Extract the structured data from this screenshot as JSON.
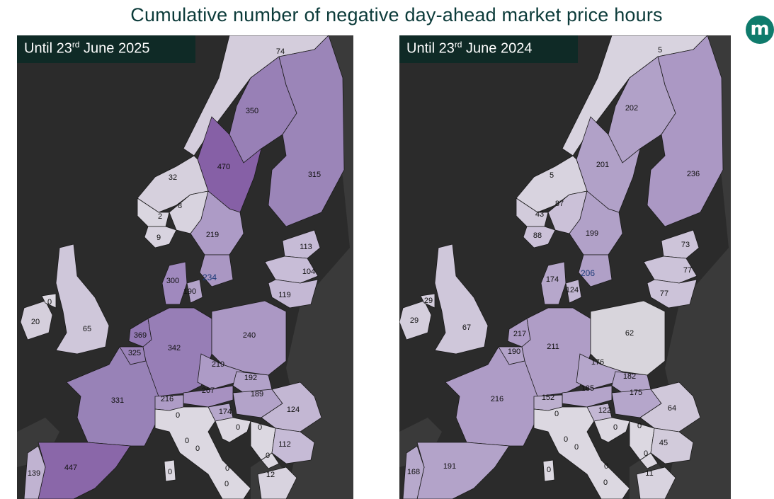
{
  "title": "Cumulative number of negative day-ahead market price hours",
  "logo_letter": "m",
  "colors": {
    "sea": "#2b2b2b",
    "land_other": "#3a3a3a",
    "border": "#1a1a1a",
    "caption_bg": "#0f2a26",
    "title": "#0c3b3a",
    "logo": "#0f7b6c"
  },
  "maps": [
    {
      "caption_prefix": "Until 23",
      "caption_sup": "rd",
      "caption_suffix": " June 2025",
      "regions": {
        "NO4": {
          "value": "74",
          "fill": "#d4cddc"
        },
        "SE1": {
          "value": "350",
          "fill": "#9880b6"
        },
        "FI": {
          "value": "315",
          "fill": "#9b85b8"
        },
        "SE2": {
          "value": "470",
          "fill": "#8660a6"
        },
        "NO3": {
          "value": "32",
          "fill": "#d6d0dd"
        },
        "NO1": {
          "value": "8",
          "fill": "#d8d3df"
        },
        "NO5": {
          "value": "2",
          "fill": "#dad6e0"
        },
        "NO2": {
          "value": "9",
          "fill": "#d8d3df"
        },
        "SE3": {
          "value": "219",
          "fill": "#ad9bc6"
        },
        "SE4": {
          "value": "234",
          "fill": "#aa97c3"
        },
        "DK1": {
          "value": "300",
          "fill": "#a089be"
        },
        "DK2": {
          "value": "190",
          "fill": "#b3a3c9"
        },
        "EE": {
          "value": "113",
          "fill": "#c6bbd6"
        },
        "LV": {
          "value": "104",
          "fill": "#c8bdd7"
        },
        "LT": {
          "value": "119",
          "fill": "#c4b8d4"
        },
        "IE": {
          "value": "20",
          "fill": "#d5cfdc"
        },
        "NI": {
          "value": "0",
          "fill": "#dcd8e1"
        },
        "GB": {
          "value": "65",
          "fill": "#cfc7da"
        },
        "NL": {
          "value": "369",
          "fill": "#9379b4"
        },
        "BE": {
          "value": "325",
          "fill": "#9a82b8"
        },
        "DE": {
          "value": "342",
          "fill": "#977eb6"
        },
        "PL": {
          "value": "240",
          "fill": "#ab98c4"
        },
        "CZ": {
          "value": "219",
          "fill": "#ad9bc6"
        },
        "SK": {
          "value": "192",
          "fill": "#b2a2c9"
        },
        "AT": {
          "value": "267",
          "fill": "#a791c1"
        },
        "HU": {
          "value": "189",
          "fill": "#b3a3c9"
        },
        "RO": {
          "value": "124",
          "fill": "#c3b7d3"
        },
        "FR": {
          "value": "331",
          "fill": "#9882b7"
        },
        "CH": {
          "value": "216",
          "fill": "#ae9cc6"
        },
        "SI": {
          "value": "174",
          "fill": "#b6a7cb"
        },
        "IT": {
          "value": "0",
          "fill": "#dcd8e1"
        },
        "HR": {
          "value": "0",
          "fill": "#dcd8e1"
        },
        "RS": {
          "value": "0",
          "fill": "#dcd8e1"
        },
        "BG": {
          "value": "112",
          "fill": "#c6bbd6"
        },
        "MK": {
          "value": "0",
          "fill": "#dcd8e1"
        },
        "GR": {
          "value": "12",
          "fill": "#d8d3df"
        },
        "ES": {
          "value": "447",
          "fill": "#8a67a9"
        },
        "PT": {
          "value": "139",
          "fill": "#c0b3d1"
        },
        "SAR": {
          "value": "0",
          "fill": "#dcd8e1"
        }
      },
      "extra_labels": [
        "0",
        "0",
        "0",
        "0"
      ]
    },
    {
      "caption_prefix": "Until 23",
      "caption_sup": "rd",
      "caption_suffix": " June 2024",
      "regions": {
        "NO4": {
          "value": "5",
          "fill": "#d8d3df"
        },
        "SE1": {
          "value": "202",
          "fill": "#b1a1c8"
        },
        "FI": {
          "value": "236",
          "fill": "#ab98c4"
        },
        "SE2": {
          "value": "201",
          "fill": "#b1a1c8"
        },
        "NO3": {
          "value": "5",
          "fill": "#d8d3df"
        },
        "NO1": {
          "value": "87",
          "fill": "#cbc1d8"
        },
        "NO5": {
          "value": "43",
          "fill": "#d2cbdb"
        },
        "NO2": {
          "value": "88",
          "fill": "#cbc1d8"
        },
        "SE3": {
          "value": "199",
          "fill": "#b1a1c8"
        },
        "SE4": {
          "value": "206",
          "fill": "#b0a0c7"
        },
        "DK1": {
          "value": "174",
          "fill": "#b6a7cb"
        },
        "DK2": {
          "value": "124",
          "fill": "#c3b7d3"
        },
        "EE": {
          "value": "73",
          "fill": "#cdc4d9"
        },
        "LV": {
          "value": "77",
          "fill": "#ccc3d9"
        },
        "LT": {
          "value": "77",
          "fill": "#ccc3d9"
        },
        "IE": {
          "value": "29",
          "fill": "#d4cedc"
        },
        "NI": {
          "value": "29",
          "fill": "#d4cedc"
        },
        "GB": {
          "value": "67",
          "fill": "#cfc7da"
        },
        "NL": {
          "value": "217",
          "fill": "#ae9cc6"
        },
        "BE": {
          "value": "190",
          "fill": "#b3a3c9"
        },
        "DE": {
          "value": "211",
          "fill": "#af9dc6"
        },
        "PL": {
          "value": "62",
          "fill": "#d8d5dc"
        },
        "CZ": {
          "value": "176",
          "fill": "#b5a6cb"
        },
        "SK": {
          "value": "182",
          "fill": "#b4a5ca"
        },
        "AT": {
          "value": "185",
          "fill": "#b4a4ca"
        },
        "HU": {
          "value": "175",
          "fill": "#b5a6cb"
        },
        "RO": {
          "value": "64",
          "fill": "#d0c8da"
        },
        "FR": {
          "value": "216",
          "fill": "#ae9cc6"
        },
        "CH": {
          "value": "152",
          "fill": "#bdb0cf"
        },
        "SI": {
          "value": "122",
          "fill": "#c3b7d3"
        },
        "IT": {
          "value": "0",
          "fill": "#dcd8e1"
        },
        "HR": {
          "value": "0",
          "fill": "#dcd8e1"
        },
        "RS": {
          "value": "0",
          "fill": "#dcd8e1"
        },
        "BG": {
          "value": "45",
          "fill": "#d2cbdb"
        },
        "MK": {
          "value": "0",
          "fill": "#dcd8e1"
        },
        "GR": {
          "value": "11",
          "fill": "#d8d3df"
        },
        "ES": {
          "value": "191",
          "fill": "#b3a3c9"
        },
        "PT": {
          "value": "168",
          "fill": "#b7a9cc"
        },
        "SAR": {
          "value": "0",
          "fill": "#dcd8e1"
        }
      },
      "extra_labels": [
        "0",
        "0",
        "0",
        "0"
      ]
    }
  ]
}
